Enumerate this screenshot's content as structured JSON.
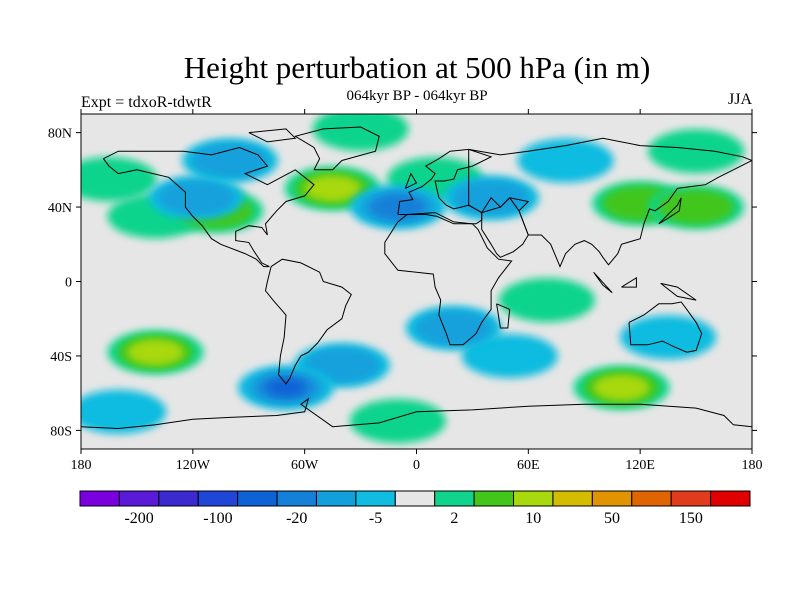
{
  "header": {
    "title": "Height perturbation at 500 hPa (in m)",
    "subtitle": "064kyr BP - 064kyr BP",
    "left_label": "Expt = tdxoR-tdwtR",
    "right_label": "JJA"
  },
  "map": {
    "lon_range": [
      -180,
      180
    ],
    "lat_range": [
      -90,
      90
    ],
    "ocean_color": "#e6e6e6",
    "lat_ticks": [
      {
        "label": "80N",
        "lat": 80
      },
      {
        "label": "40N",
        "lat": 40
      },
      {
        "label": "0",
        "lat": 0
      },
      {
        "label": "40S",
        "lat": -40
      },
      {
        "label": "80S",
        "lat": -80
      }
    ],
    "lon_ticks": [
      {
        "label": "180",
        "lon": -180
      },
      {
        "label": "120W",
        "lon": -120
      },
      {
        "label": "60W",
        "lon": -60
      },
      {
        "label": "0",
        "lon": 0
      },
      {
        "label": "60E",
        "lon": 60
      },
      {
        "label": "120E",
        "lon": 120
      },
      {
        "label": "180",
        "lon": 180
      }
    ],
    "anomalies": [
      {
        "lon": -165,
        "lat": 55,
        "level": 1
      },
      {
        "lon": -100,
        "lat": 65,
        "level": -2
      },
      {
        "lon": -140,
        "lat": 35,
        "level": 1
      },
      {
        "lon": -108,
        "lat": 38,
        "level": 2
      },
      {
        "lon": -118,
        "lat": 45,
        "level": -2
      },
      {
        "lon": -45,
        "lat": 50,
        "level": 3
      },
      {
        "lon": -10,
        "lat": 40,
        "level": -3
      },
      {
        "lon": -30,
        "lat": 82,
        "level": 1
      },
      {
        "lon": 40,
        "lat": 45,
        "level": -2
      },
      {
        "lon": 10,
        "lat": 55,
        "level": 1
      },
      {
        "lon": 80,
        "lat": 65,
        "level": -1
      },
      {
        "lon": 120,
        "lat": 42,
        "level": 2
      },
      {
        "lon": 150,
        "lat": 40,
        "level": 2
      },
      {
        "lon": 150,
        "lat": 70,
        "level": 1
      },
      {
        "lon": -140,
        "lat": -38,
        "level": 3
      },
      {
        "lon": -70,
        "lat": -57,
        "level": -4
      },
      {
        "lon": -40,
        "lat": -45,
        "level": -2
      },
      {
        "lon": -160,
        "lat": -70,
        "level": -1
      },
      {
        "lon": 20,
        "lat": -25,
        "level": -2
      },
      {
        "lon": 50,
        "lat": -40,
        "level": -1
      },
      {
        "lon": 110,
        "lat": -57,
        "level": 3
      },
      {
        "lon": 135,
        "lat": -30,
        "level": -1
      },
      {
        "lon": 70,
        "lat": -10,
        "level": 1
      },
      {
        "lon": -10,
        "lat": -75,
        "level": 1
      }
    ],
    "coastline_color": "#000000"
  },
  "colorbar": {
    "colors": [
      "#7a00e0",
      "#5a1ad8",
      "#3a2ad0",
      "#2046d8",
      "#0e62d6",
      "#1480d8",
      "#12a0dc",
      "#10bce0",
      "#e6e6e6",
      "#10d48c",
      "#42c61a",
      "#a8d80e",
      "#d4bc00",
      "#e09400",
      "#e06400",
      "#e03c1c",
      "#e00000"
    ],
    "labels": [
      {
        "text": "-200",
        "index": 1
      },
      {
        "text": "-100",
        "index": 3
      },
      {
        "text": "-20",
        "index": 5
      },
      {
        "text": "-5",
        "index": 7
      },
      {
        "text": "2",
        "index": 9
      },
      {
        "text": "10",
        "index": 11
      },
      {
        "text": "50",
        "index": 13
      },
      {
        "text": "150",
        "index": 15
      }
    ]
  }
}
